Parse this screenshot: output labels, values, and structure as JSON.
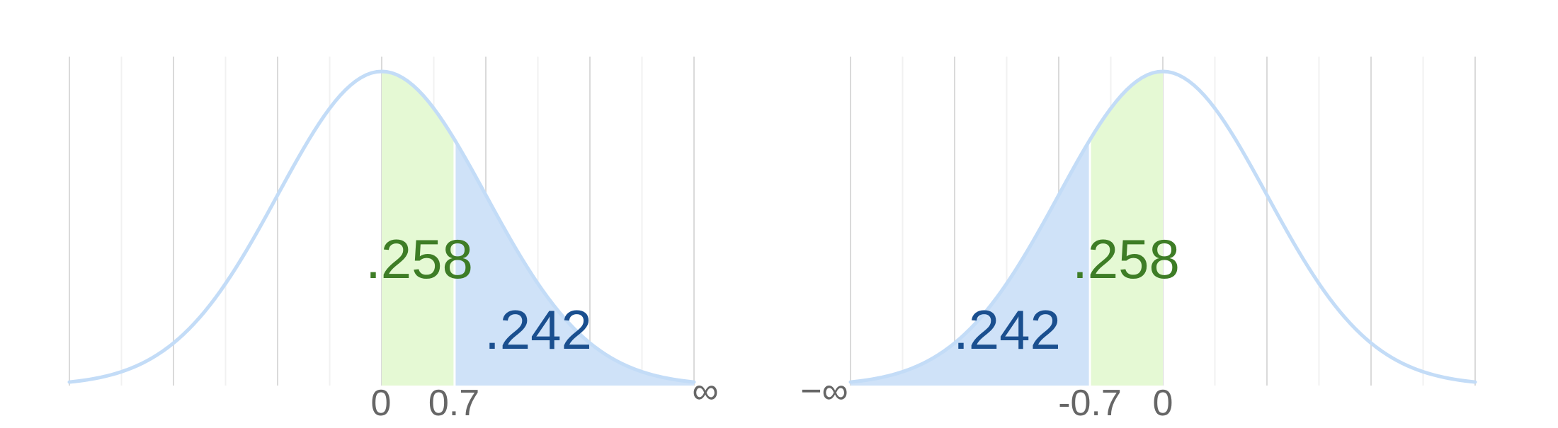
{
  "colors": {
    "curve": "#c3dcf7",
    "blue_fill": "#cfe2f8",
    "green_fill": "#e5f9d4",
    "green_text": "#3e7d26",
    "blue_text": "#1a4f8f",
    "axis_text": "#666666",
    "grid_major": "#dadada",
    "grid_minor": "#f1f1f1"
  },
  "panels": [
    {
      "green_area_label": ".258",
      "blue_area_label": ".242",
      "tick_labels": {
        "zero": "0",
        "cut": "0.7",
        "infinity": "∞"
      }
    },
    {
      "green_area_label": ".258",
      "blue_area_label": ".242",
      "tick_labels": {
        "neg_infinity": "−∞",
        "cut": "-0.7",
        "zero": "0"
      }
    }
  ]
}
